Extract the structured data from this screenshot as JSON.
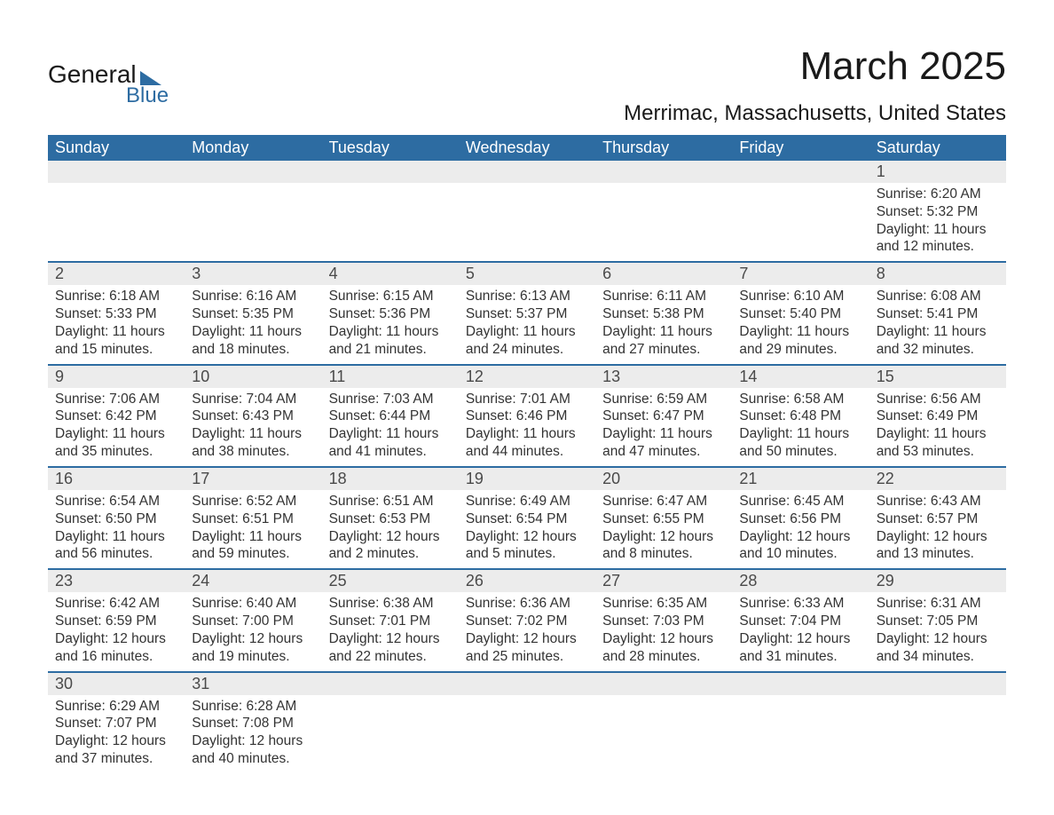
{
  "brand": {
    "part1": "General",
    "part2": "Blue"
  },
  "title": "March 2025",
  "location": "Merrimac, Massachusetts, United States",
  "colors": {
    "header_bg": "#2d6ca2",
    "header_text": "#ffffff",
    "num_bg": "#ececec",
    "row_divider": "#2d6ca2",
    "body_text": "#333333",
    "logo_accent": "#2d6ca2"
  },
  "daysOfWeek": [
    "Sunday",
    "Monday",
    "Tuesday",
    "Wednesday",
    "Thursday",
    "Friday",
    "Saturday"
  ],
  "weeks": [
    {
      "nums": [
        "",
        "",
        "",
        "",
        "",
        "",
        "1"
      ],
      "cells": [
        null,
        null,
        null,
        null,
        null,
        null,
        {
          "sunrise": "Sunrise: 6:20 AM",
          "sunset": "Sunset: 5:32 PM",
          "d1": "Daylight: 11 hours",
          "d2": "and 12 minutes."
        }
      ]
    },
    {
      "nums": [
        "2",
        "3",
        "4",
        "5",
        "6",
        "7",
        "8"
      ],
      "cells": [
        {
          "sunrise": "Sunrise: 6:18 AM",
          "sunset": "Sunset: 5:33 PM",
          "d1": "Daylight: 11 hours",
          "d2": "and 15 minutes."
        },
        {
          "sunrise": "Sunrise: 6:16 AM",
          "sunset": "Sunset: 5:35 PM",
          "d1": "Daylight: 11 hours",
          "d2": "and 18 minutes."
        },
        {
          "sunrise": "Sunrise: 6:15 AM",
          "sunset": "Sunset: 5:36 PM",
          "d1": "Daylight: 11 hours",
          "d2": "and 21 minutes."
        },
        {
          "sunrise": "Sunrise: 6:13 AM",
          "sunset": "Sunset: 5:37 PM",
          "d1": "Daylight: 11 hours",
          "d2": "and 24 minutes."
        },
        {
          "sunrise": "Sunrise: 6:11 AM",
          "sunset": "Sunset: 5:38 PM",
          "d1": "Daylight: 11 hours",
          "d2": "and 27 minutes."
        },
        {
          "sunrise": "Sunrise: 6:10 AM",
          "sunset": "Sunset: 5:40 PM",
          "d1": "Daylight: 11 hours",
          "d2": "and 29 minutes."
        },
        {
          "sunrise": "Sunrise: 6:08 AM",
          "sunset": "Sunset: 5:41 PM",
          "d1": "Daylight: 11 hours",
          "d2": "and 32 minutes."
        }
      ]
    },
    {
      "nums": [
        "9",
        "10",
        "11",
        "12",
        "13",
        "14",
        "15"
      ],
      "cells": [
        {
          "sunrise": "Sunrise: 7:06 AM",
          "sunset": "Sunset: 6:42 PM",
          "d1": "Daylight: 11 hours",
          "d2": "and 35 minutes."
        },
        {
          "sunrise": "Sunrise: 7:04 AM",
          "sunset": "Sunset: 6:43 PM",
          "d1": "Daylight: 11 hours",
          "d2": "and 38 minutes."
        },
        {
          "sunrise": "Sunrise: 7:03 AM",
          "sunset": "Sunset: 6:44 PM",
          "d1": "Daylight: 11 hours",
          "d2": "and 41 minutes."
        },
        {
          "sunrise": "Sunrise: 7:01 AM",
          "sunset": "Sunset: 6:46 PM",
          "d1": "Daylight: 11 hours",
          "d2": "and 44 minutes."
        },
        {
          "sunrise": "Sunrise: 6:59 AM",
          "sunset": "Sunset: 6:47 PM",
          "d1": "Daylight: 11 hours",
          "d2": "and 47 minutes."
        },
        {
          "sunrise": "Sunrise: 6:58 AM",
          "sunset": "Sunset: 6:48 PM",
          "d1": "Daylight: 11 hours",
          "d2": "and 50 minutes."
        },
        {
          "sunrise": "Sunrise: 6:56 AM",
          "sunset": "Sunset: 6:49 PM",
          "d1": "Daylight: 11 hours",
          "d2": "and 53 minutes."
        }
      ]
    },
    {
      "nums": [
        "16",
        "17",
        "18",
        "19",
        "20",
        "21",
        "22"
      ],
      "cells": [
        {
          "sunrise": "Sunrise: 6:54 AM",
          "sunset": "Sunset: 6:50 PM",
          "d1": "Daylight: 11 hours",
          "d2": "and 56 minutes."
        },
        {
          "sunrise": "Sunrise: 6:52 AM",
          "sunset": "Sunset: 6:51 PM",
          "d1": "Daylight: 11 hours",
          "d2": "and 59 minutes."
        },
        {
          "sunrise": "Sunrise: 6:51 AM",
          "sunset": "Sunset: 6:53 PM",
          "d1": "Daylight: 12 hours",
          "d2": "and 2 minutes."
        },
        {
          "sunrise": "Sunrise: 6:49 AM",
          "sunset": "Sunset: 6:54 PM",
          "d1": "Daylight: 12 hours",
          "d2": "and 5 minutes."
        },
        {
          "sunrise": "Sunrise: 6:47 AM",
          "sunset": "Sunset: 6:55 PM",
          "d1": "Daylight: 12 hours",
          "d2": "and 8 minutes."
        },
        {
          "sunrise": "Sunrise: 6:45 AM",
          "sunset": "Sunset: 6:56 PM",
          "d1": "Daylight: 12 hours",
          "d2": "and 10 minutes."
        },
        {
          "sunrise": "Sunrise: 6:43 AM",
          "sunset": "Sunset: 6:57 PM",
          "d1": "Daylight: 12 hours",
          "d2": "and 13 minutes."
        }
      ]
    },
    {
      "nums": [
        "23",
        "24",
        "25",
        "26",
        "27",
        "28",
        "29"
      ],
      "cells": [
        {
          "sunrise": "Sunrise: 6:42 AM",
          "sunset": "Sunset: 6:59 PM",
          "d1": "Daylight: 12 hours",
          "d2": "and 16 minutes."
        },
        {
          "sunrise": "Sunrise: 6:40 AM",
          "sunset": "Sunset: 7:00 PM",
          "d1": "Daylight: 12 hours",
          "d2": "and 19 minutes."
        },
        {
          "sunrise": "Sunrise: 6:38 AM",
          "sunset": "Sunset: 7:01 PM",
          "d1": "Daylight: 12 hours",
          "d2": "and 22 minutes."
        },
        {
          "sunrise": "Sunrise: 6:36 AM",
          "sunset": "Sunset: 7:02 PM",
          "d1": "Daylight: 12 hours",
          "d2": "and 25 minutes."
        },
        {
          "sunrise": "Sunrise: 6:35 AM",
          "sunset": "Sunset: 7:03 PM",
          "d1": "Daylight: 12 hours",
          "d2": "and 28 minutes."
        },
        {
          "sunrise": "Sunrise: 6:33 AM",
          "sunset": "Sunset: 7:04 PM",
          "d1": "Daylight: 12 hours",
          "d2": "and 31 minutes."
        },
        {
          "sunrise": "Sunrise: 6:31 AM",
          "sunset": "Sunset: 7:05 PM",
          "d1": "Daylight: 12 hours",
          "d2": "and 34 minutes."
        }
      ]
    },
    {
      "nums": [
        "30",
        "31",
        "",
        "",
        "",
        "",
        ""
      ],
      "cells": [
        {
          "sunrise": "Sunrise: 6:29 AM",
          "sunset": "Sunset: 7:07 PM",
          "d1": "Daylight: 12 hours",
          "d2": "and 37 minutes."
        },
        {
          "sunrise": "Sunrise: 6:28 AM",
          "sunset": "Sunset: 7:08 PM",
          "d1": "Daylight: 12 hours",
          "d2": "and 40 minutes."
        },
        null,
        null,
        null,
        null,
        null
      ]
    }
  ]
}
